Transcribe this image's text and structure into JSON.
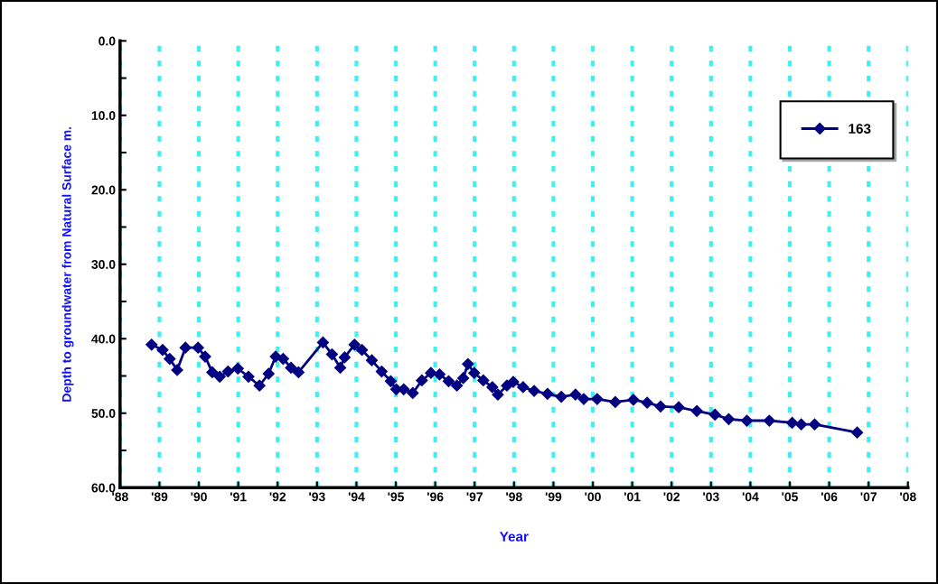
{
  "chart_data": {
    "type": "line",
    "xlabel": "Year",
    "ylabel": "Depth to groundwater from Natural Surface m.",
    "xlim": [
      1988,
      2008
    ],
    "xticks": [
      {
        "value": 1988,
        "label": "'88"
      },
      {
        "value": 1989,
        "label": "'89"
      },
      {
        "value": 1990,
        "label": "'90"
      },
      {
        "value": 1991,
        "label": "'91"
      },
      {
        "value": 1992,
        "label": "'92"
      },
      {
        "value": 1993,
        "label": "'93"
      },
      {
        "value": 1994,
        "label": "'94"
      },
      {
        "value": 1995,
        "label": "'95"
      },
      {
        "value": 1996,
        "label": "'96"
      },
      {
        "value": 1997,
        "label": "'97"
      },
      {
        "value": 1998,
        "label": "'98"
      },
      {
        "value": 1999,
        "label": "'99"
      },
      {
        "value": 2000,
        "label": "'00"
      },
      {
        "value": 2001,
        "label": "'01"
      },
      {
        "value": 2002,
        "label": "'02"
      },
      {
        "value": 2003,
        "label": "'03"
      },
      {
        "value": 2004,
        "label": "'04"
      },
      {
        "value": 2005,
        "label": "'05"
      },
      {
        "value": 2006,
        "label": "'06"
      },
      {
        "value": 2007,
        "label": "'07"
      },
      {
        "value": 2008,
        "label": "'08"
      }
    ],
    "ylim": [
      60,
      0
    ],
    "yticks": [
      {
        "value": 0,
        "label": "0.0"
      },
      {
        "value": 5,
        "label": null
      },
      {
        "value": 10,
        "label": "10.0"
      },
      {
        "value": 15,
        "label": null
      },
      {
        "value": 20,
        "label": "20.0"
      },
      {
        "value": 25,
        "label": null
      },
      {
        "value": 30,
        "label": "30.0"
      },
      {
        "value": 35,
        "label": null
      },
      {
        "value": 40,
        "label": "40.0"
      },
      {
        "value": 45,
        "label": null
      },
      {
        "value": 50,
        "label": "50.0"
      },
      {
        "value": 55,
        "label": null
      },
      {
        "value": 60,
        "label": "60.0"
      }
    ],
    "grid": "x",
    "legend": "top right",
    "marker": "diamond",
    "line_style": "solid",
    "series": [
      {
        "name": "163",
        "color": "#000080",
        "x": [
          1988.8,
          1989.08,
          1989.26,
          1989.45,
          1989.66,
          1989.98,
          1990.16,
          1990.34,
          1990.53,
          1990.74,
          1990.99,
          1991.26,
          1991.54,
          1991.77,
          1991.95,
          1992.14,
          1992.34,
          1992.53,
          1993.15,
          1993.38,
          1993.59,
          1993.7,
          1993.95,
          1994.14,
          1994.39,
          1994.64,
          1994.87,
          1995.01,
          1995.2,
          1995.43,
          1995.66,
          1995.89,
          1996.11,
          1996.34,
          1996.55,
          1996.71,
          1996.83,
          1996.99,
          1997.22,
          1997.45,
          1997.59,
          1997.82,
          1997.98,
          1998.23,
          1998.51,
          1998.85,
          1999.2,
          1999.56,
          1999.77,
          2000.11,
          2000.57,
          2001.03,
          2001.38,
          2001.72,
          2002.18,
          2002.64,
          2003.1,
          2003.45,
          2003.91,
          2004.48,
          2005.06,
          2005.29,
          2005.63,
          2006.71
        ],
        "values": [
          40.8,
          41.5,
          42.7,
          44.2,
          41.2,
          41.2,
          42.4,
          44.5,
          45.1,
          44.4,
          44.0,
          45.1,
          46.3,
          44.7,
          42.4,
          42.7,
          43.9,
          44.5,
          40.5,
          42.1,
          43.9,
          42.5,
          40.8,
          41.5,
          42.9,
          44.4,
          45.7,
          46.8,
          46.8,
          47.3,
          45.6,
          44.6,
          44.8,
          45.7,
          46.3,
          45.3,
          43.4,
          44.6,
          45.6,
          46.5,
          47.5,
          46.3,
          45.8,
          46.5,
          47.0,
          47.4,
          47.8,
          47.5,
          48.1,
          48.1,
          48.5,
          48.2,
          48.6,
          49.1,
          49.2,
          49.7,
          50.2,
          50.8,
          51.0,
          51.0,
          51.3,
          51.5,
          51.5,
          52.6
        ]
      }
    ]
  }
}
